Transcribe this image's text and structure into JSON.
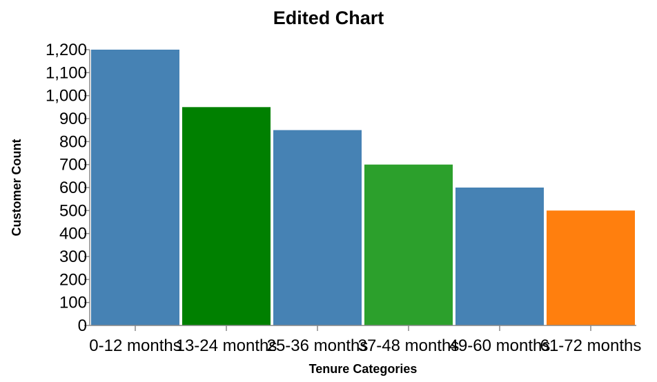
{
  "chart_data": {
    "type": "bar",
    "title": "Edited Chart",
    "xlabel": "Tenure Categories",
    "ylabel": "Customer Count",
    "categories": [
      "0-12 months",
      "13-24 months",
      "25-36 months",
      "37-48 months",
      "49-60 months",
      "61-72 months"
    ],
    "values": [
      1200,
      950,
      850,
      700,
      600,
      500
    ],
    "colors": [
      "#4682b4",
      "#008000",
      "#4682b4",
      "#2ca02c",
      "#4682b4",
      "#ff7f0e"
    ],
    "ylim": [
      0,
      1200
    ],
    "yticks": [
      0,
      100,
      200,
      300,
      400,
      500,
      600,
      700,
      800,
      900,
      1000,
      1100,
      1200
    ],
    "ytick_labels": [
      "0",
      "100",
      "200",
      "300",
      "400",
      "500",
      "600",
      "700",
      "800",
      "900",
      "1,000",
      "1,100",
      "1,200"
    ],
    "grid": false,
    "legend": "none"
  }
}
